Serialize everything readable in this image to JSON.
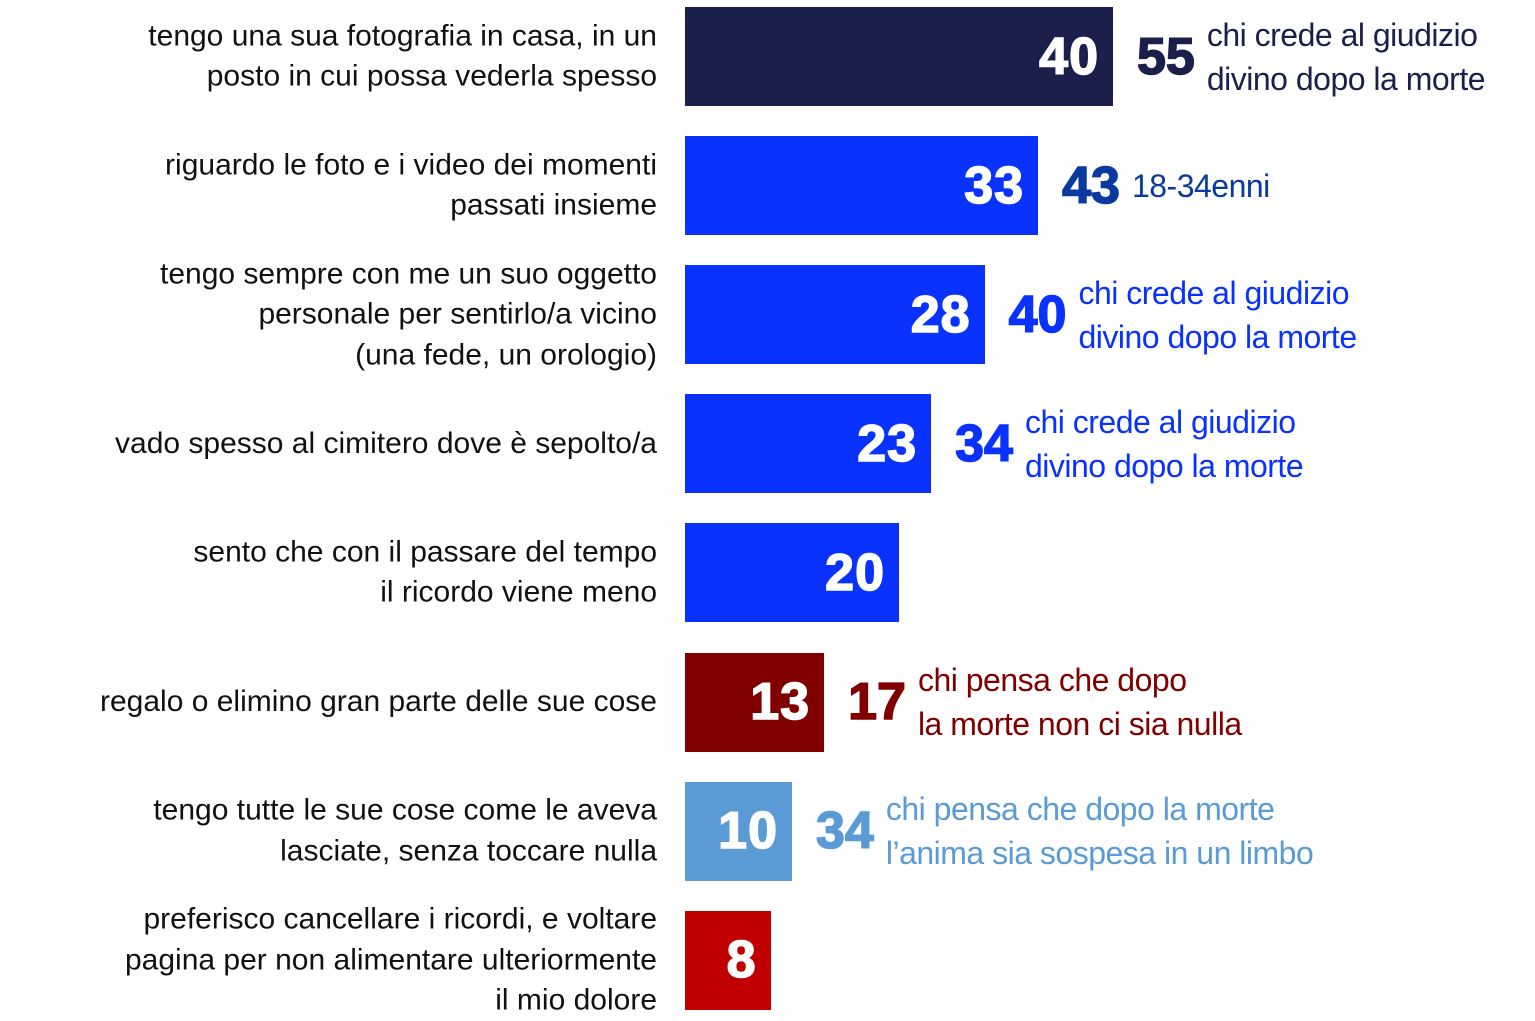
{
  "chart_data": {
    "type": "bar",
    "orientation": "horizontal",
    "categories": [
      "tengo una sua fotografia in casa, in un\nposto in cui possa vederla spesso",
      "riguardo le foto e i video dei momenti\npassati insieme",
      "tengo sempre con me un suo oggetto\npersonale per sentirlo/a vicino\n(una fede, un orologio)",
      "vado spesso al cimitero dove è sepolto/a",
      "sento che con il passare del tempo\nil ricordo viene meno",
      "regalo o elimino gran parte delle sue cose",
      "tengo tutte le sue cose come le aveva\nlasciate, senza toccare nulla",
      "preferisco cancellare i ricordi, e voltare\npagina per non alimentare ulteriormente\nil mio dolore"
    ],
    "values": [
      40,
      33,
      28,
      23,
      20,
      13,
      10,
      8
    ],
    "colors": [
      "#1b1f4b",
      "#0a32ff",
      "#0a32ff",
      "#0a32ff",
      "#0a32ff",
      "#800000",
      "#5b9bd5",
      "#c00000"
    ],
    "comparisons": [
      {
        "value": 55,
        "label": "chi crede al giudizio\ndivino dopo la morte",
        "color": "#1b1f4b"
      },
      {
        "value": 43,
        "label": "18-34enni",
        "color": "#0b3a9e"
      },
      {
        "value": 40,
        "label": "chi crede al giudizio\ndivino dopo la morte",
        "color": "#0a32ff"
      },
      {
        "value": 34,
        "label": "chi crede al giudizio\ndivino dopo la morte",
        "color": "#0a32ff"
      },
      null,
      {
        "value": 17,
        "label": "chi pensa che dopo\nla morte non ci sia nulla",
        "color": "#800000"
      },
      {
        "value": 34,
        "label": "chi pensa che dopo la morte\nl’anima sia sospesa in un limbo",
        "color": "#5b9bd5"
      },
      null
    ]
  }
}
